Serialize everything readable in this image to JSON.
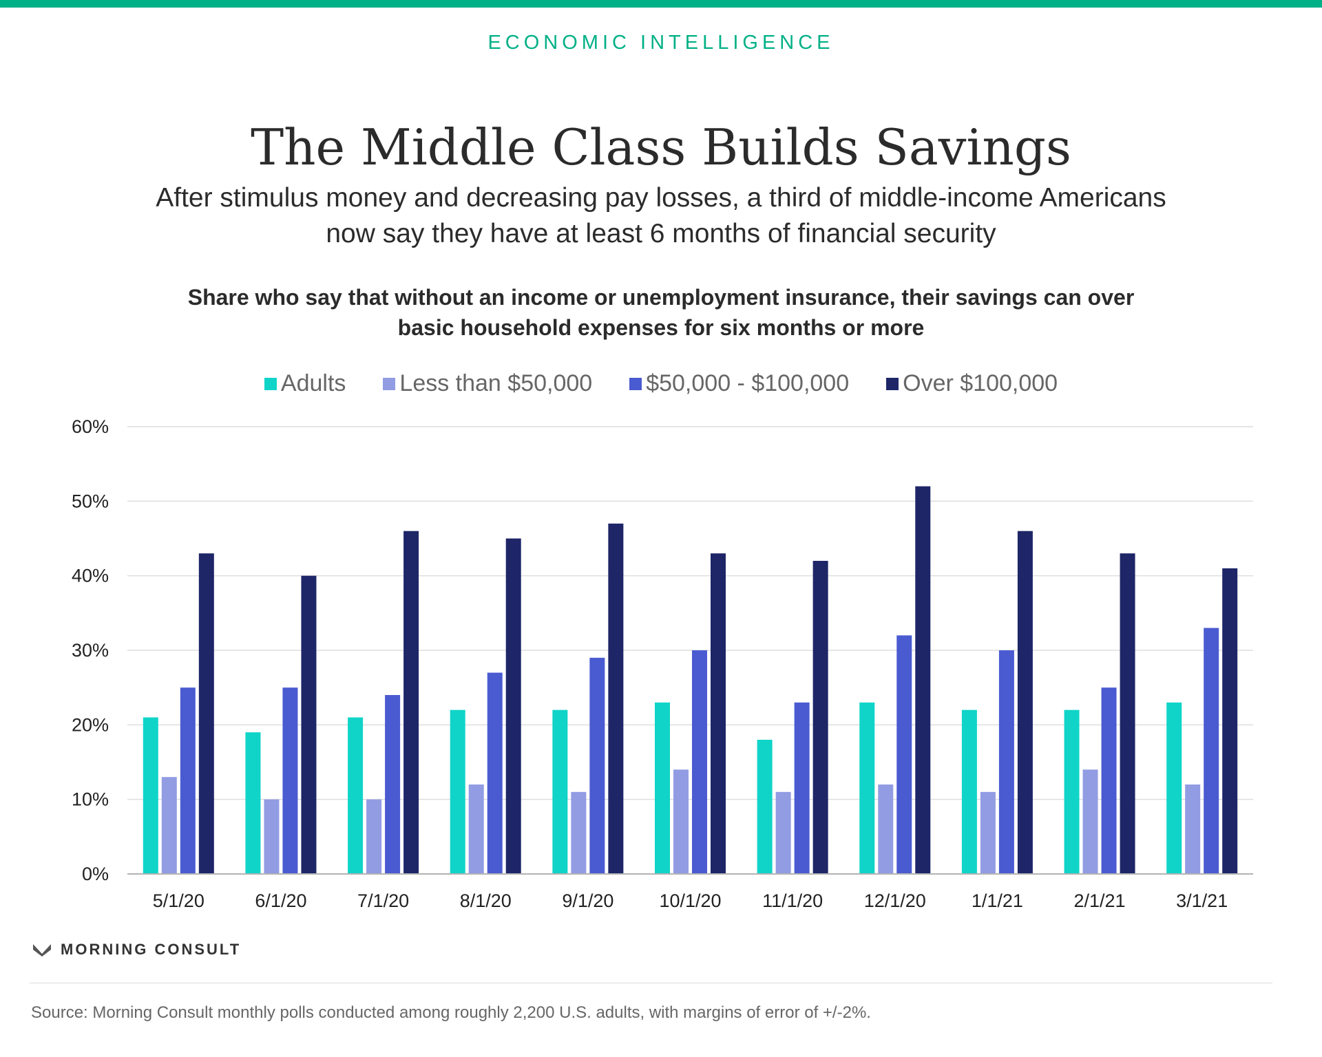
{
  "colors": {
    "accent": "#00b086",
    "adults": "#10d4c8",
    "under_50k": "#929ce3",
    "mid_50_100k": "#4a5bd1",
    "over_100k": "#1e2668",
    "grid": "#dedede",
    "axis": "#b3b3b3"
  },
  "header": {
    "kicker": "ECONOMIC INTELLIGENCE",
    "title": "The Middle Class Builds Savings",
    "subtitle": "After stimulus money and decreasing pay losses, a third of middle-income Americans now say they have at least 6 months of financial security"
  },
  "chart_note": "Share who say that without an income or unemployment insurance, their savings can over basic household expenses for six months or more",
  "legend": [
    {
      "label": "Adults",
      "color": "#10d4c8"
    },
    {
      "label": "Less than $50,000",
      "color": "#929ce3"
    },
    {
      "label": "$50,000 - $100,000",
      "color": "#4a5bd1"
    },
    {
      "label": "Over $100,000",
      "color": "#1e2668"
    }
  ],
  "chart_data": {
    "type": "bar",
    "title": "",
    "xlabel": "",
    "ylabel": "",
    "ylim": [
      0,
      60
    ],
    "yticks": [
      "0%",
      "10%",
      "20%",
      "30%",
      "40%",
      "50%",
      "60%"
    ],
    "grid": true,
    "legend_position": "top",
    "categories": [
      "5/1/20",
      "6/1/20",
      "7/1/20",
      "8/1/20",
      "9/1/20",
      "10/1/20",
      "11/1/20",
      "12/1/20",
      "1/1/21",
      "2/1/21",
      "3/1/21"
    ],
    "series": [
      {
        "name": "Adults",
        "color": "#10d4c8",
        "values": [
          21,
          19,
          21,
          22,
          22,
          23,
          18,
          23,
          22,
          22,
          23
        ]
      },
      {
        "name": "Less than $50,000",
        "color": "#929ce3",
        "values": [
          13,
          10,
          10,
          12,
          11,
          14,
          11,
          12,
          11,
          14,
          12
        ]
      },
      {
        "name": "$50,000 - $100,000",
        "color": "#4a5bd1",
        "values": [
          25,
          25,
          24,
          27,
          29,
          30,
          23,
          32,
          30,
          25,
          33
        ]
      },
      {
        "name": "Over $100,000",
        "color": "#1e2668",
        "values": [
          43,
          40,
          46,
          45,
          47,
          43,
          42,
          52,
          46,
          43,
          41
        ]
      }
    ]
  },
  "footer": {
    "logo_text": "MORNING CONSULT",
    "source": "Source: Morning Consult monthly polls conducted among roughly 2,200 U.S. adults, with margins of error of +/-2%."
  }
}
